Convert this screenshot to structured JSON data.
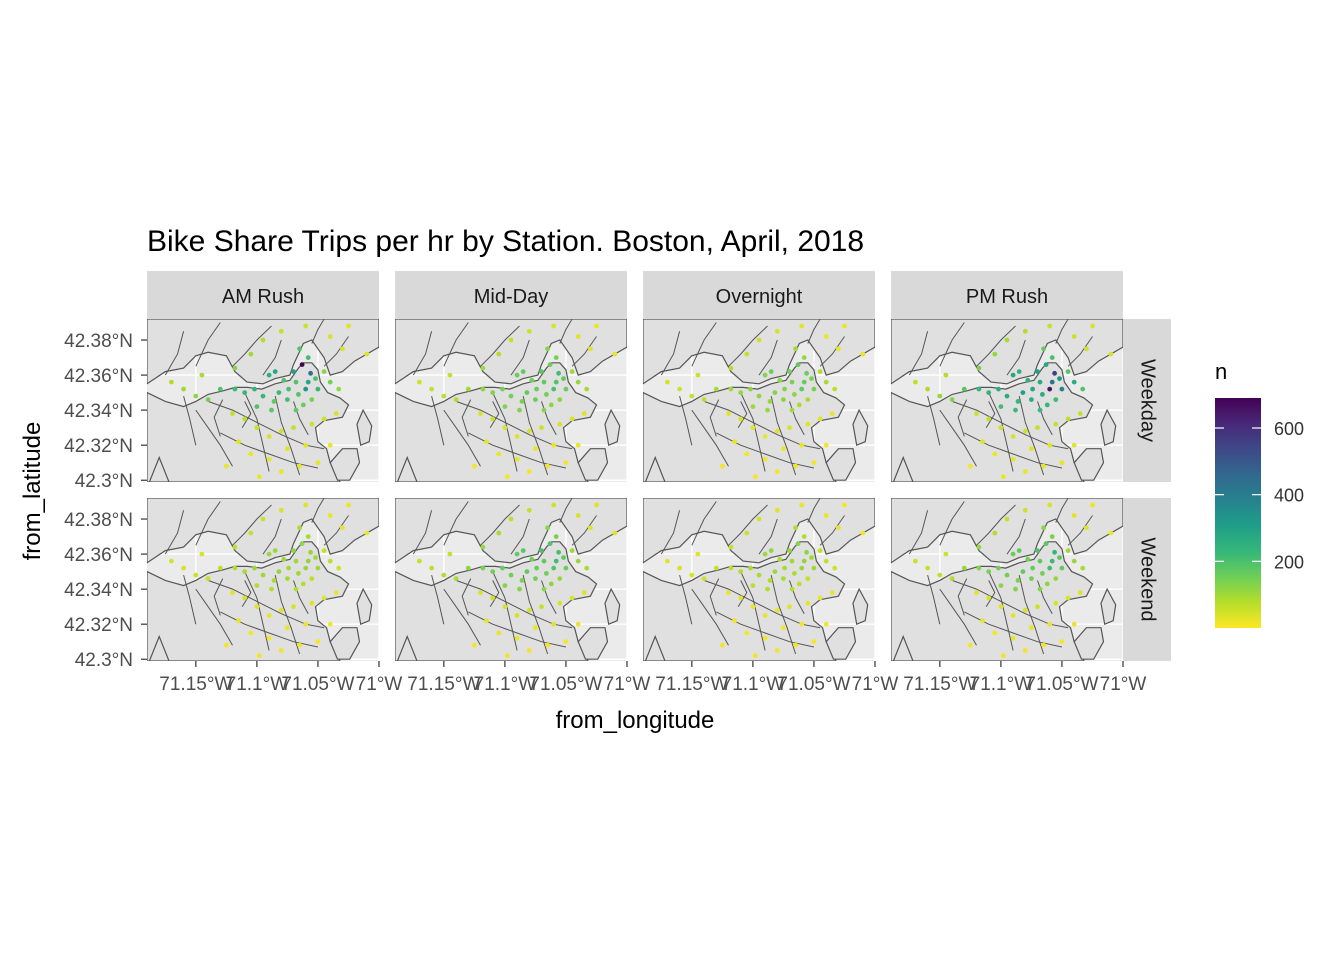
{
  "chart_data": {
    "type": "scatter",
    "title": "Bike Share Trips per hr by Station. Boston, April, 2018",
    "xlabel": "from_longitude",
    "ylabel": "from_latitude",
    "x_ticks": [
      {
        "value": -71.15,
        "label": "71.15°W"
      },
      {
        "value": -71.1,
        "label": "71.1°W"
      },
      {
        "value": -71.05,
        "label": "71.05°W"
      },
      {
        "value": -71.0,
        "label": "71°W"
      }
    ],
    "y_ticks": [
      {
        "value": 42.3,
        "label": "42.3°N"
      },
      {
        "value": 42.32,
        "label": "42.32°N"
      },
      {
        "value": 42.34,
        "label": "42.34°N"
      },
      {
        "value": 42.36,
        "label": "42.36°N"
      },
      {
        "value": 42.38,
        "label": "42.38°N"
      }
    ],
    "xlim": [
      -71.19,
      -71.0
    ],
    "ylim": [
      42.299,
      42.392
    ],
    "facet_columns": [
      "AM Rush",
      "Mid-Day",
      "Overnight",
      "PM Rush"
    ],
    "facet_rows": [
      "Weekday",
      "Weekend"
    ],
    "legend": {
      "title": "n",
      "position": "right",
      "breaks": [
        200,
        400,
        600
      ],
      "range": [
        0,
        690
      ],
      "palette": [
        "#fde725",
        "#b5de2b",
        "#6ece58",
        "#35b779",
        "#1f9e89",
        "#26828e",
        "#31688e",
        "#3e4989",
        "#482878",
        "#440154"
      ]
    },
    "panel_background": "#ebebeb",
    "map_fill": "#e0e0e0",
    "map_stroke": "#555555",
    "strip_fill": "#d9d9d9",
    "grid": true,
    "stations": [
      {
        "lon": -71.063,
        "lat": 42.366,
        "n": [
          690,
          160,
          170,
          280,
          120,
          190,
          130,
          180
        ]
      },
      {
        "lon": -71.056,
        "lat": 42.361,
        "n": [
          430,
          210,
          160,
          560,
          110,
          200,
          120,
          230
        ]
      },
      {
        "lon": -71.06,
        "lat": 42.352,
        "n": [
          320,
          200,
          170,
          640,
          110,
          190,
          110,
          210
        ]
      },
      {
        "lon": -71.07,
        "lat": 42.362,
        "n": [
          300,
          180,
          150,
          300,
          120,
          200,
          110,
          190
        ]
      },
      {
        "lon": -71.058,
        "lat": 42.356,
        "n": [
          280,
          190,
          160,
          420,
          120,
          210,
          120,
          220
        ]
      },
      {
        "lon": -71.05,
        "lat": 42.352,
        "n": [
          230,
          160,
          140,
          380,
          100,
          160,
          100,
          170
        ]
      },
      {
        "lon": -71.085,
        "lat": 42.362,
        "n": [
          280,
          170,
          160,
          240,
          110,
          180,
          120,
          170
        ]
      },
      {
        "lon": -71.09,
        "lat": 42.36,
        "n": [
          250,
          160,
          130,
          280,
          100,
          170,
          100,
          160
        ]
      },
      {
        "lon": -71.102,
        "lat": 42.352,
        "n": [
          240,
          140,
          120,
          260,
          110,
          160,
          90,
          150
        ]
      },
      {
        "lon": -71.095,
        "lat": 42.348,
        "n": [
          230,
          150,
          120,
          270,
          100,
          150,
          90,
          150
        ]
      },
      {
        "lon": -71.082,
        "lat": 42.35,
        "n": [
          220,
          170,
          130,
          300,
          110,
          170,
          100,
          170
        ]
      },
      {
        "lon": -71.075,
        "lat": 42.346,
        "n": [
          210,
          160,
          120,
          260,
          100,
          150,
          90,
          150
        ]
      },
      {
        "lon": -71.11,
        "lat": 42.35,
        "n": [
          230,
          130,
          110,
          240,
          90,
          150,
          80,
          140
        ]
      },
      {
        "lon": -71.118,
        "lat": 42.352,
        "n": [
          220,
          120,
          100,
          230,
          80,
          140,
          70,
          130
        ]
      },
      {
        "lon": -71.1,
        "lat": 42.342,
        "n": [
          190,
          130,
          100,
          210,
          80,
          130,
          70,
          120
        ]
      },
      {
        "lon": -71.088,
        "lat": 42.34,
        "n": [
          180,
          130,
          110,
          220,
          80,
          130,
          80,
          130
        ]
      },
      {
        "lon": -71.068,
        "lat": 42.34,
        "n": [
          170,
          130,
          100,
          220,
          80,
          120,
          80,
          130
        ]
      },
      {
        "lon": -71.062,
        "lat": 42.343,
        "n": [
          160,
          120,
          90,
          230,
          80,
          120,
          70,
          120
        ]
      },
      {
        "lon": -71.058,
        "lat": 42.37,
        "n": [
          210,
          140,
          110,
          200,
          90,
          140,
          80,
          140
        ]
      },
      {
        "lon": -71.065,
        "lat": 42.375,
        "n": [
          190,
          130,
          100,
          170,
          90,
          130,
          80,
          130
        ]
      },
      {
        "lon": -71.04,
        "lat": 42.356,
        "n": [
          150,
          110,
          90,
          260,
          70,
          110,
          60,
          110
        ]
      },
      {
        "lon": -71.045,
        "lat": 42.362,
        "n": [
          120,
          100,
          80,
          180,
          60,
          100,
          60,
          100
        ]
      },
      {
        "lon": -71.033,
        "lat": 42.352,
        "n": [
          110,
          90,
          70,
          190,
          50,
          90,
          50,
          90
        ]
      },
      {
        "lon": -71.13,
        "lat": 42.352,
        "n": [
          190,
          100,
          90,
          180,
          70,
          120,
          60,
          110
        ]
      },
      {
        "lon": -71.14,
        "lat": 42.346,
        "n": [
          140,
          80,
          70,
          130,
          60,
          90,
          50,
          80
        ]
      },
      {
        "lon": -71.15,
        "lat": 42.348,
        "n": [
          120,
          70,
          60,
          110,
          50,
          80,
          40,
          70
        ]
      },
      {
        "lon": -71.16,
        "lat": 42.352,
        "n": [
          100,
          60,
          50,
          90,
          40,
          70,
          40,
          60
        ]
      },
      {
        "lon": -71.17,
        "lat": 42.356,
        "n": [
          80,
          50,
          40,
          70,
          40,
          60,
          30,
          50
        ]
      },
      {
        "lon": -71.145,
        "lat": 42.36,
        "n": [
          90,
          60,
          50,
          80,
          40,
          60,
          30,
          50
        ]
      },
      {
        "lon": -71.118,
        "lat": 42.364,
        "n": [
          130,
          100,
          80,
          140,
          70,
          110,
          60,
          110
        ]
      },
      {
        "lon": -71.105,
        "lat": 42.372,
        "n": [
          100,
          80,
          60,
          110,
          60,
          90,
          50,
          80
        ]
      },
      {
        "lon": -71.095,
        "lat": 42.38,
        "n": [
          80,
          60,
          50,
          90,
          50,
          70,
          40,
          60
        ]
      },
      {
        "lon": -71.08,
        "lat": 42.385,
        "n": [
          60,
          50,
          40,
          80,
          40,
          60,
          30,
          50
        ]
      },
      {
        "lon": -71.06,
        "lat": 42.388,
        "n": [
          50,
          40,
          30,
          60,
          30,
          50,
          20,
          40
        ]
      },
      {
        "lon": -71.04,
        "lat": 42.382,
        "n": [
          40,
          30,
          20,
          50,
          20,
          40,
          20,
          30
        ]
      },
      {
        "lon": -71.03,
        "lat": 42.375,
        "n": [
          40,
          30,
          20,
          50,
          20,
          30,
          20,
          30
        ]
      },
      {
        "lon": -71.01,
        "lat": 42.372,
        "n": [
          30,
          20,
          20,
          40,
          20,
          30,
          10,
          20
        ]
      },
      {
        "lon": -71.025,
        "lat": 42.388,
        "n": [
          30,
          20,
          20,
          40,
          20,
          30,
          10,
          20
        ]
      },
      {
        "lon": -71.07,
        "lat": 42.33,
        "n": [
          60,
          50,
          40,
          60,
          40,
          60,
          30,
          50
        ]
      },
      {
        "lon": -71.08,
        "lat": 42.328,
        "n": [
          50,
          40,
          30,
          50,
          30,
          50,
          20,
          40
        ]
      },
      {
        "lon": -71.09,
        "lat": 42.325,
        "n": [
          40,
          30,
          20,
          40,
          20,
          40,
          20,
          30
        ]
      },
      {
        "lon": -71.1,
        "lat": 42.33,
        "n": [
          60,
          40,
          30,
          50,
          30,
          40,
          20,
          30
        ]
      },
      {
        "lon": -71.11,
        "lat": 42.335,
        "n": [
          70,
          50,
          40,
          60,
          40,
          50,
          30,
          40
        ]
      },
      {
        "lon": -71.12,
        "lat": 42.338,
        "n": [
          60,
          40,
          30,
          50,
          30,
          40,
          20,
          30
        ]
      },
      {
        "lon": -71.055,
        "lat": 42.332,
        "n": [
          50,
          40,
          30,
          60,
          30,
          40,
          20,
          40
        ]
      },
      {
        "lon": -71.045,
        "lat": 42.335,
        "n": [
          50,
          40,
          30,
          70,
          30,
          40,
          20,
          40
        ]
      },
      {
        "lon": -71.035,
        "lat": 42.338,
        "n": [
          40,
          30,
          20,
          60,
          20,
          30,
          20,
          30
        ]
      },
      {
        "lon": -71.06,
        "lat": 42.32,
        "n": [
          30,
          20,
          20,
          30,
          20,
          30,
          10,
          20
        ]
      },
      {
        "lon": -71.075,
        "lat": 42.318,
        "n": [
          30,
          20,
          20,
          30,
          20,
          20,
          10,
          20
        ]
      },
      {
        "lon": -71.09,
        "lat": 42.312,
        "n": [
          20,
          20,
          10,
          20,
          10,
          20,
          10,
          20
        ]
      },
      {
        "lon": -71.105,
        "lat": 42.315,
        "n": [
          20,
          20,
          10,
          20,
          10,
          20,
          10,
          10
        ]
      },
      {
        "lon": -71.115,
        "lat": 42.322,
        "n": [
          30,
          20,
          20,
          30,
          20,
          20,
          10,
          20
        ]
      },
      {
        "lon": -71.065,
        "lat": 42.308,
        "n": [
          20,
          10,
          10,
          20,
          10,
          10,
          10,
          10
        ]
      },
      {
        "lon": -71.08,
        "lat": 42.305,
        "n": [
          20,
          10,
          10,
          20,
          10,
          10,
          10,
          10
        ]
      },
      {
        "lon": -71.05,
        "lat": 42.31,
        "n": [
          20,
          10,
          10,
          20,
          10,
          10,
          10,
          10
        ]
      },
      {
        "lon": -71.04,
        "lat": 42.32,
        "n": [
          20,
          20,
          10,
          30,
          10,
          20,
          10,
          20
        ]
      },
      {
        "lon": -71.098,
        "lat": 42.302,
        "n": [
          20,
          10,
          10,
          20,
          10,
          10,
          10,
          10
        ]
      },
      {
        "lon": -71.125,
        "lat": 42.308,
        "n": [
          20,
          10,
          10,
          10,
          10,
          10,
          10,
          10
        ]
      },
      {
        "lon": -71.055,
        "lat": 42.346,
        "n": [
          140,
          120,
          90,
          220,
          70,
          110,
          60,
          110
        ]
      },
      {
        "lon": -71.052,
        "lat": 42.358,
        "n": [
          200,
          170,
          140,
          330,
          100,
          170,
          100,
          180
        ]
      },
      {
        "lon": -71.068,
        "lat": 42.356,
        "n": [
          190,
          170,
          140,
          260,
          100,
          170,
          100,
          170
        ]
      },
      {
        "lon": -71.074,
        "lat": 42.352,
        "n": [
          200,
          160,
          130,
          280,
          100,
          160,
          90,
          160
        ]
      },
      {
        "lon": -71.066,
        "lat": 42.349,
        "n": [
          190,
          150,
          120,
          270,
          100,
          150,
          90,
          150
        ]
      },
      {
        "lon": -71.086,
        "lat": 42.345,
        "n": [
          170,
          140,
          110,
          230,
          90,
          140,
          80,
          140
        ]
      },
      {
        "lon": -71.078,
        "lat": 42.357,
        "n": [
          190,
          150,
          120,
          250,
          100,
          150,
          90,
          150
        ]
      }
    ]
  }
}
